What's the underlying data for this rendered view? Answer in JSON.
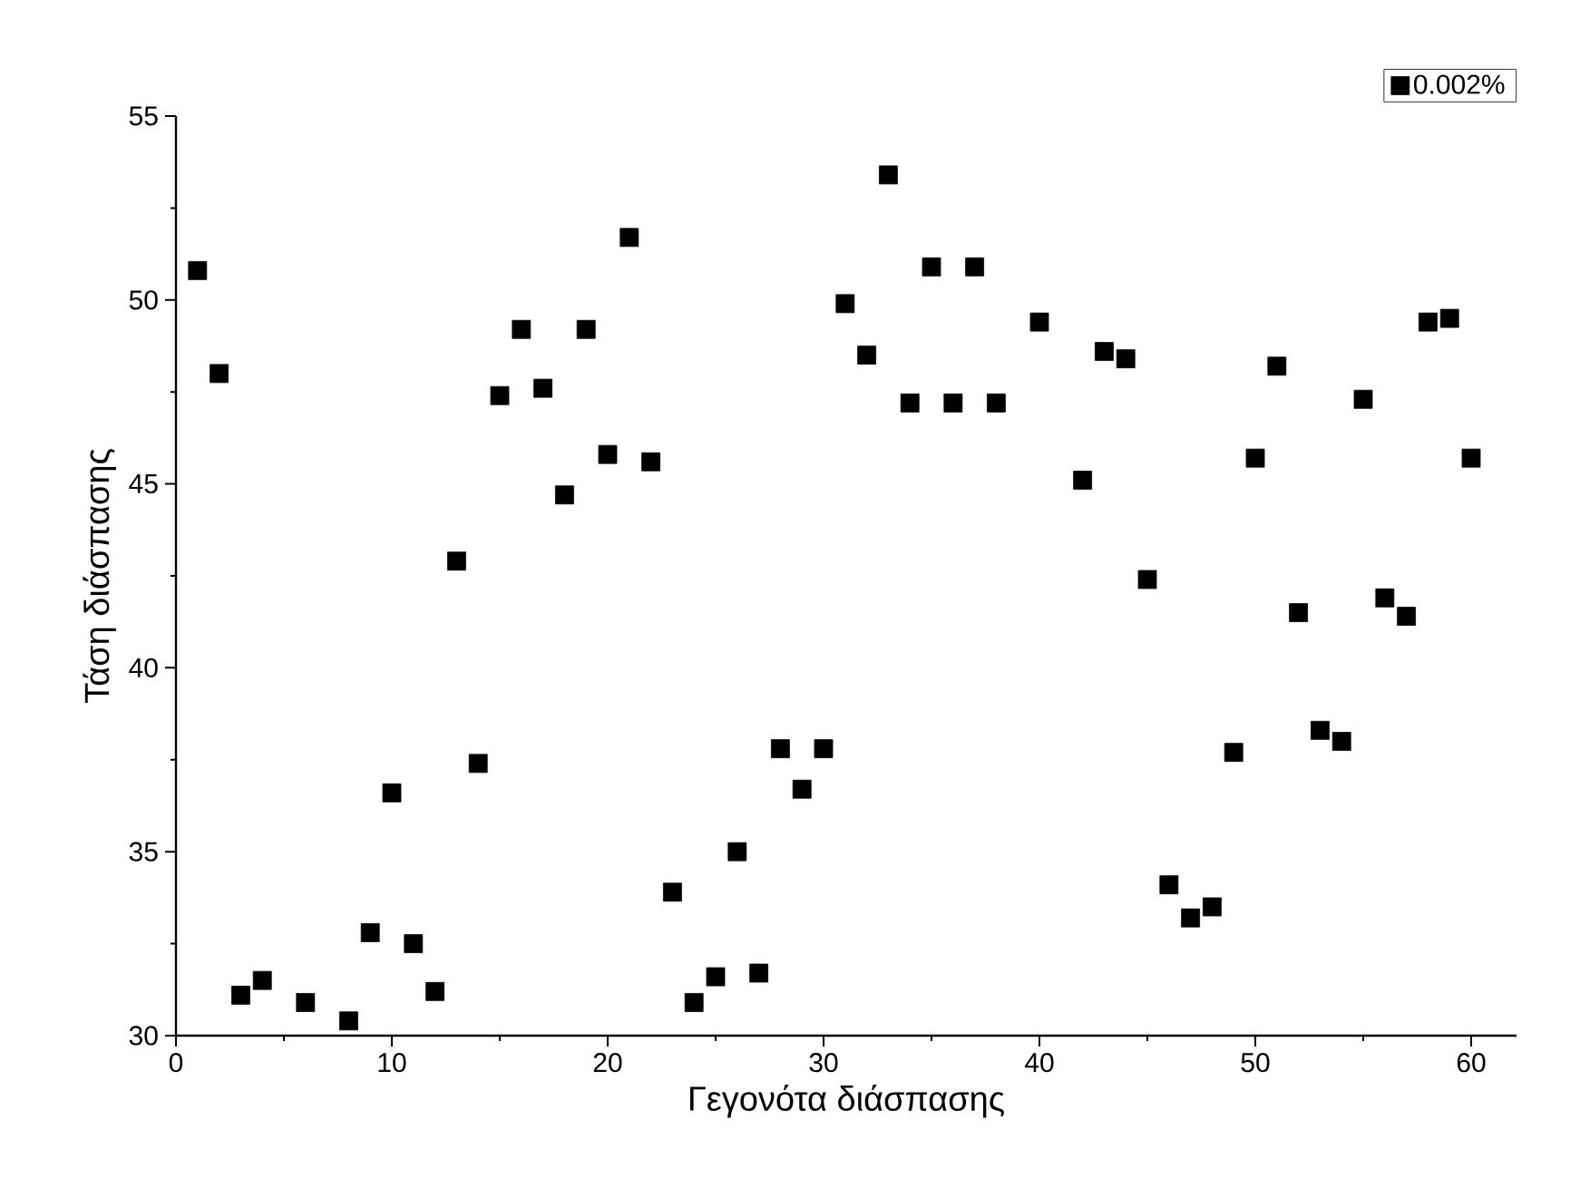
{
  "chart_data": {
    "type": "scatter",
    "xlabel": "Γεγονότα διάσπασης",
    "ylabel": "Τάση διάσπασης",
    "series": [
      {
        "name": "0.002%",
        "color": "#000000",
        "x": [
          1,
          2,
          3,
          4,
          6,
          8,
          9,
          10,
          11,
          12,
          13,
          14,
          15,
          16,
          17,
          18,
          19,
          20,
          21,
          22,
          23,
          24,
          25,
          26,
          27,
          28,
          29,
          30,
          31,
          32,
          33,
          34,
          35,
          36,
          37,
          38,
          40,
          42,
          43,
          44,
          45,
          46,
          47,
          48,
          49,
          50,
          51,
          52,
          53,
          54,
          55,
          56,
          57,
          58,
          59,
          60
        ],
        "values": [
          50.8,
          48.0,
          31.1,
          31.5,
          30.9,
          30.4,
          32.8,
          36.6,
          32.5,
          31.2,
          42.9,
          37.4,
          47.4,
          49.2,
          47.6,
          44.7,
          49.2,
          45.8,
          51.7,
          45.6,
          33.9,
          30.9,
          31.6,
          35.0,
          31.7,
          37.8,
          36.7,
          37.8,
          49.9,
          48.5,
          53.4,
          47.2,
          50.9,
          47.2,
          50.9,
          47.2,
          49.4,
          45.1,
          48.6,
          48.4,
          42.4,
          34.1,
          33.2,
          33.5,
          37.7,
          45.7,
          48.2,
          41.5,
          38.3,
          38.0,
          47.3,
          41.9,
          41.4,
          49.4,
          49.5,
          45.7
        ]
      }
    ],
    "xlim": [
      0,
      62.1
    ],
    "ylim": [
      30,
      55
    ],
    "xticks": [
      0,
      10,
      20,
      30,
      40,
      50,
      60
    ],
    "yticks": [
      30,
      35,
      40,
      45,
      50,
      55
    ],
    "marker": "square",
    "legend": "top right",
    "grid": false
  }
}
